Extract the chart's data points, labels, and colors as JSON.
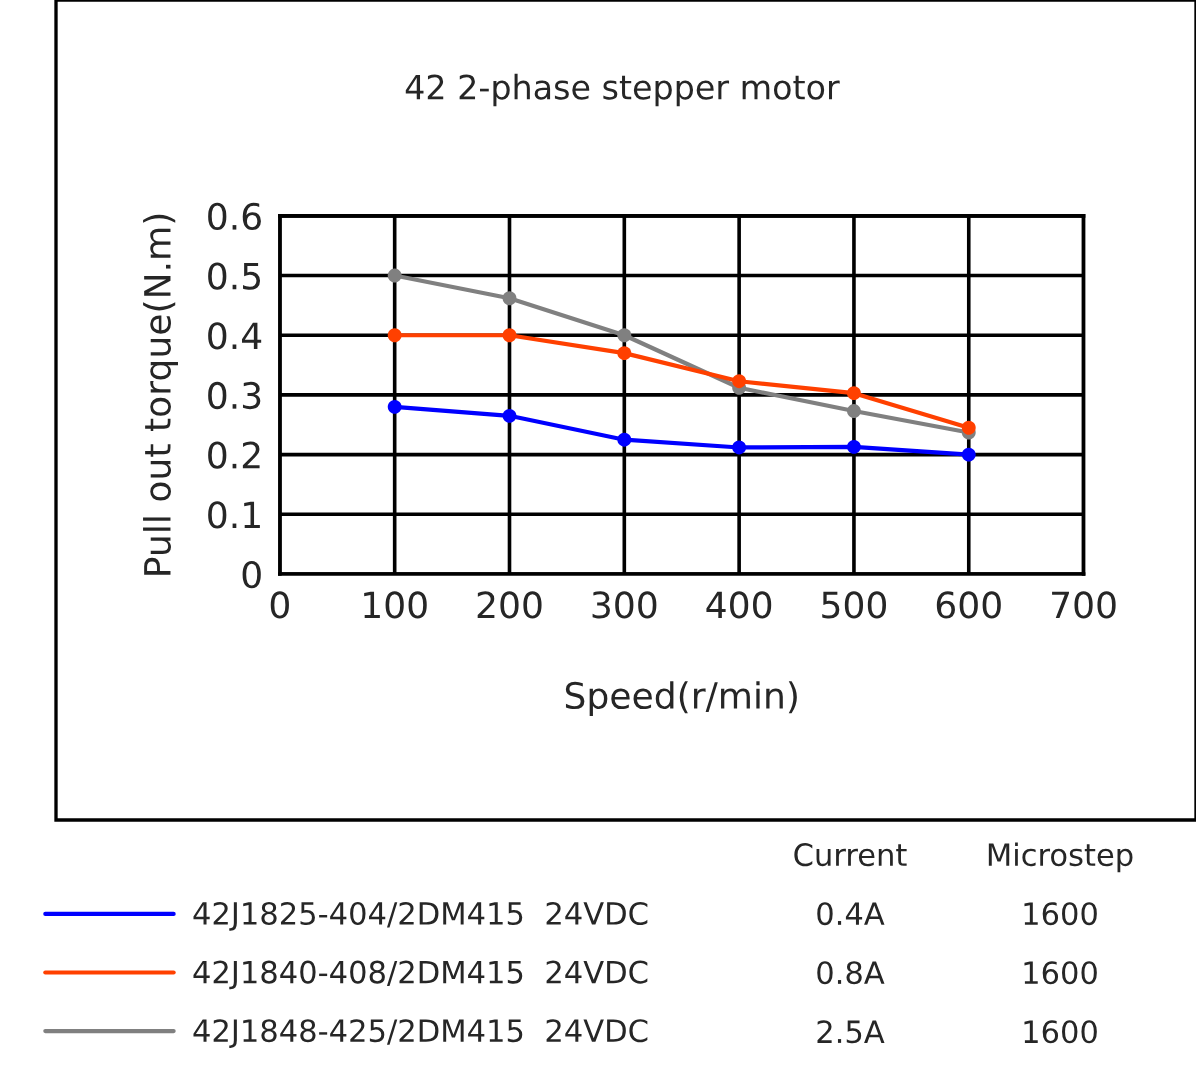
{
  "chart_data": {
    "type": "line",
    "title": "42 2-phase stepper motor",
    "xlabel": "Speed(r/min)",
    "ylabel": "Pull out torque(N.m)",
    "x": [
      100,
      200,
      300,
      400,
      500,
      600
    ],
    "series": [
      {
        "name": "42J1825-404/2DM415  24VDC",
        "color": "#0000ff",
        "values": [
          0.28,
          0.265,
          0.225,
          0.212,
          0.213,
          0.2
        ]
      },
      {
        "name": "42J1840-408/2DM415  24VDC",
        "color": "#ff4000",
        "values": [
          0.4,
          0.4,
          0.37,
          0.323,
          0.303,
          0.245
        ]
      },
      {
        "name": "42J1848-425/2DM415  24VDC",
        "color": "#808080",
        "values": [
          0.5,
          0.462,
          0.4,
          0.312,
          0.273,
          0.237
        ]
      }
    ],
    "xlim": [
      0,
      700
    ],
    "xticks": [
      0,
      100,
      200,
      300,
      400,
      500,
      600,
      700
    ],
    "ylim": [
      0,
      0.6
    ],
    "yticks": [
      0,
      0.1,
      0.2,
      0.3,
      0.4,
      0.5,
      0.6
    ],
    "grid": true,
    "marker": "circle",
    "line_style": "solid",
    "legend": "bottom",
    "annotations": [
      "Current",
      "Microstep",
      "0.4A",
      "1600",
      "0.8A",
      "1600",
      "2.5A",
      "1600"
    ]
  }
}
